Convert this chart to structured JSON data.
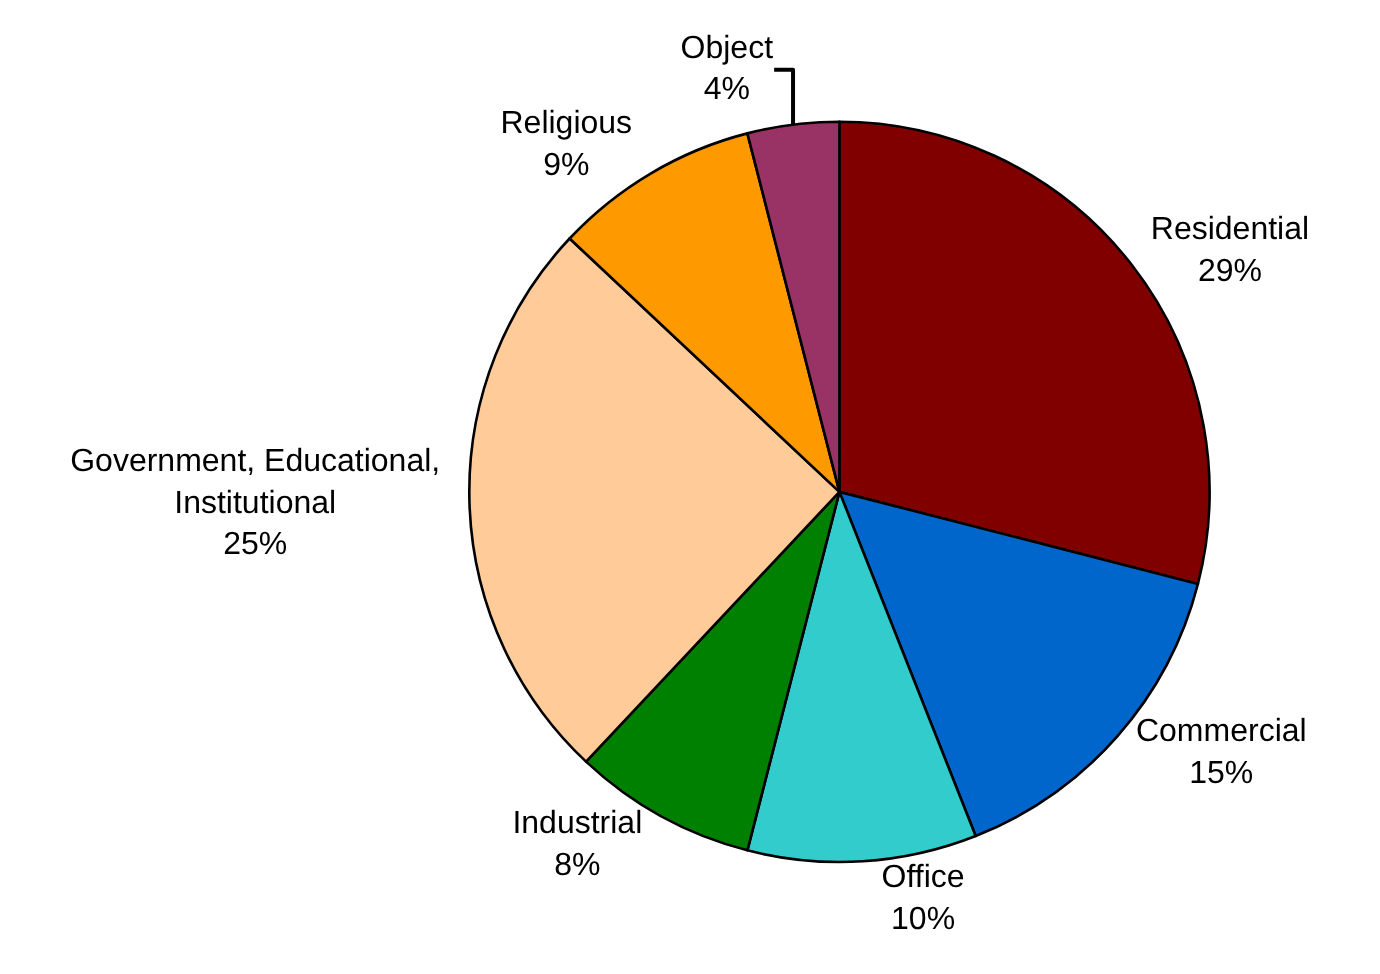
{
  "chart_data": {
    "type": "pie",
    "categories": [
      "Residential",
      "Commercial",
      "Office",
      "Industrial",
      "Government, Educational, Institutional",
      "Religious",
      "Object"
    ],
    "values": [
      29,
      15,
      10,
      8,
      25,
      9,
      4
    ],
    "value_labels": [
      "29%",
      "15%",
      "10%",
      "8%",
      "25%",
      "9%",
      "4%"
    ],
    "colors": [
      "#800000",
      "#0066cc",
      "#33cccc",
      "#008000",
      "#ffcc99",
      "#ff9900",
      "#993366"
    ],
    "legend": false
  }
}
